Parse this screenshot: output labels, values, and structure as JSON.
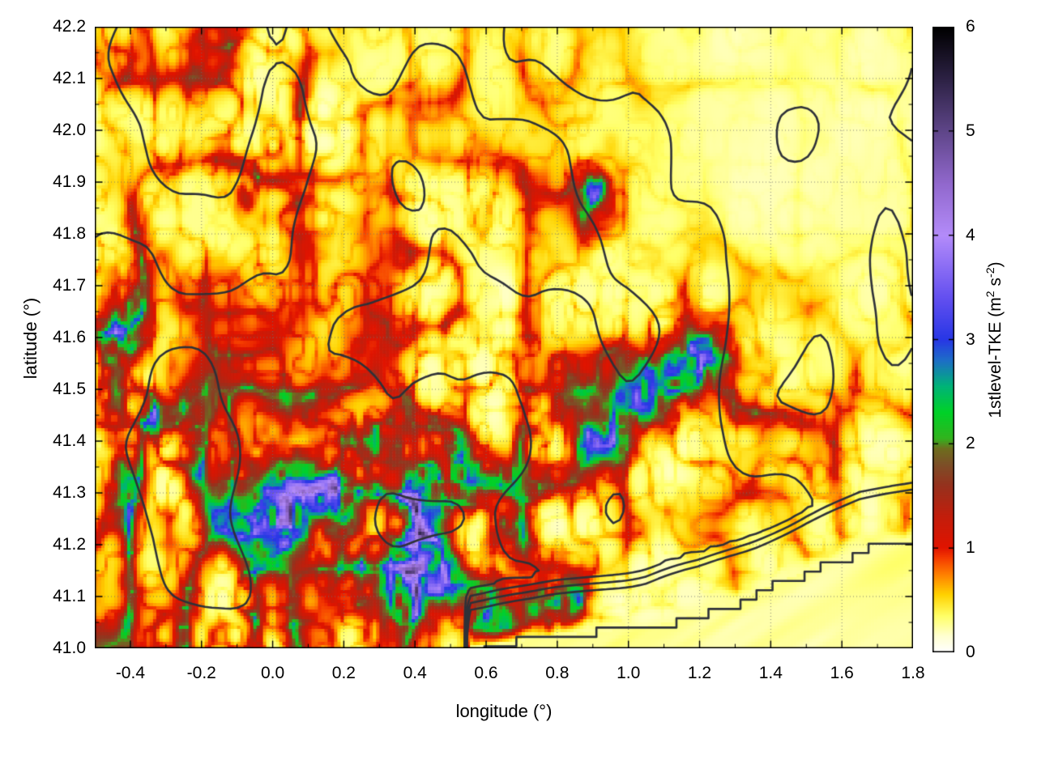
{
  "figure": {
    "background": "#ffffff"
  },
  "chart_data": {
    "type": "heatmap",
    "title": "",
    "xlabel": "longitude (°)",
    "ylabel": "latitude (°)",
    "xlim": [
      -0.5,
      1.8
    ],
    "ylim": [
      41.0,
      42.2
    ],
    "grid": {
      "style": "dotted",
      "color": "rgba(110,110,110,0.85)"
    },
    "xticks": {
      "values": [
        -0.4,
        -0.2,
        0.0,
        0.2,
        0.4,
        0.6,
        0.8,
        1.0,
        1.2,
        1.4,
        1.6,
        1.8
      ],
      "labels": [
        "-0.4",
        "-0.2",
        "0.0",
        "0.2",
        "0.4",
        "0.6",
        "0.8",
        "1.0",
        "1.2",
        "1.4",
        "1.6",
        "1.8"
      ],
      "minor": [
        -0.3,
        -0.1,
        0.1,
        0.3,
        0.5,
        0.7,
        0.9,
        1.1,
        1.3,
        1.5,
        1.7
      ]
    },
    "yticks": {
      "values": [
        41.0,
        41.1,
        41.2,
        41.3,
        41.4,
        41.5,
        41.6,
        41.7,
        41.8,
        41.9,
        42.0,
        42.1,
        42.2
      ],
      "labels": [
        "41.0",
        "41.1",
        "41.2",
        "41.3",
        "41.4",
        "41.5",
        "41.6",
        "41.7",
        "41.8",
        "41.9",
        "42.0",
        "42.1",
        "42.2"
      ],
      "minor": [
        41.05,
        41.15,
        41.25,
        41.35,
        41.45,
        41.55,
        41.65,
        41.75,
        41.85,
        41.95,
        42.05,
        42.15
      ]
    },
    "colorbar": {
      "range": [
        0,
        6
      ],
      "ticks": {
        "values": [
          0,
          1,
          2,
          3,
          4,
          5,
          6
        ],
        "labels": [
          "0",
          "1",
          "2",
          "3",
          "4",
          "5",
          "6"
        ]
      },
      "label_parts": {
        "prefix": "1stlevel-TKE (m",
        "sup1": "2",
        "mid": " s",
        "sup2": "-2",
        "suffix": ")"
      },
      "palette": [
        [
          0.0,
          "#ffffff"
        ],
        [
          0.15,
          "#ffffd2"
        ],
        [
          0.35,
          "#ffff64"
        ],
        [
          0.55,
          "#ffd200"
        ],
        [
          0.75,
          "#ff7d00"
        ],
        [
          0.9,
          "#f53c00"
        ],
        [
          1.0,
          "#e11400"
        ],
        [
          1.3,
          "#c31e0c"
        ],
        [
          1.6,
          "#96321e"
        ],
        [
          1.8,
          "#7d5028"
        ],
        [
          1.95,
          "#6e6e1e"
        ],
        [
          2.05,
          "#32b41e"
        ],
        [
          2.3,
          "#00d228"
        ],
        [
          2.55,
          "#00b478"
        ],
        [
          2.8,
          "#1e6ec8"
        ],
        [
          3.0,
          "#2837e6"
        ],
        [
          3.4,
          "#6450f0"
        ],
        [
          4.0,
          "#b48cfa"
        ],
        [
          4.5,
          "#9168cd"
        ],
        [
          5.0,
          "#5f4689"
        ],
        [
          5.5,
          "#2d2245"
        ],
        [
          6.0,
          "#000000"
        ]
      ]
    },
    "field": {
      "units": "m2 s-2",
      "background_level": [
        0.1,
        0.6
      ],
      "filament_level": [
        0.8,
        1.7
      ],
      "seed": 7,
      "intensity_regions": [
        [
          -0.42,
          41.55,
          0.16,
          0.42,
          0.95
        ],
        [
          -0.25,
          41.3,
          0.35,
          0.28,
          0.85
        ],
        [
          0.1,
          41.28,
          0.4,
          0.3,
          0.95
        ],
        [
          0.42,
          41.12,
          0.3,
          0.22,
          0.9
        ],
        [
          0.55,
          41.35,
          0.25,
          0.18,
          0.7
        ],
        [
          0.95,
          41.4,
          0.35,
          0.16,
          0.8
        ],
        [
          1.15,
          41.55,
          0.3,
          0.15,
          0.75
        ],
        [
          0.3,
          41.75,
          0.45,
          0.28,
          0.4
        ],
        [
          -0.05,
          42.08,
          0.14,
          0.22,
          0.8
        ],
        [
          -0.3,
          42.15,
          0.2,
          0.12,
          0.6
        ],
        [
          0.9,
          41.88,
          0.1,
          0.08,
          0.8
        ],
        [
          1.5,
          41.42,
          0.28,
          0.12,
          0.55
        ],
        [
          0.75,
          41.85,
          0.2,
          0.15,
          0.45
        ],
        [
          0.02,
          41.98,
          0.1,
          0.12,
          0.5
        ],
        [
          0.0,
          41.02,
          0.5,
          0.06,
          0.55
        ],
        [
          -0.38,
          41.02,
          0.25,
          0.06,
          0.55
        ],
        [
          1.4,
          41.92,
          0.5,
          0.4,
          -0.28
        ],
        [
          1.62,
          42.1,
          0.4,
          0.25,
          -0.2
        ]
      ],
      "high_tke_cores": [
        [
          -0.43,
          41.62,
          0.05,
          0.1,
          2.3
        ],
        [
          -0.445,
          41.5,
          0.04,
          0.07,
          1.9
        ],
        [
          -0.42,
          41.32,
          0.04,
          0.08,
          2.1
        ],
        [
          -0.33,
          41.44,
          0.03,
          0.04,
          1.6
        ],
        [
          0.05,
          41.3,
          0.14,
          0.1,
          2.5
        ],
        [
          0.17,
          41.28,
          0.07,
          0.05,
          3.0
        ],
        [
          0.02,
          41.22,
          0.08,
          0.06,
          2.0
        ],
        [
          0.3,
          41.4,
          0.1,
          0.05,
          2.6
        ],
        [
          0.41,
          41.29,
          0.045,
          0.07,
          3.6
        ],
        [
          0.4,
          41.17,
          0.07,
          0.07,
          3.0
        ],
        [
          0.33,
          41.09,
          0.11,
          0.07,
          2.3
        ],
        [
          0.47,
          41.12,
          0.06,
          0.05,
          2.4
        ],
        [
          0.56,
          41.33,
          0.09,
          0.05,
          2.0
        ],
        [
          0.67,
          41.22,
          0.05,
          0.045,
          2.9
        ],
        [
          0.62,
          41.05,
          0.06,
          0.05,
          2.3
        ],
        [
          0.77,
          41.07,
          0.06,
          0.055,
          3.1
        ],
        [
          0.85,
          41.1,
          0.04,
          0.035,
          3.3
        ],
        [
          0.93,
          41.4,
          0.07,
          0.04,
          2.1
        ],
        [
          1.03,
          41.47,
          0.1,
          0.05,
          2.3
        ],
        [
          1.13,
          41.53,
          0.1,
          0.05,
          2.4
        ],
        [
          1.23,
          41.58,
          0.08,
          0.045,
          2.2
        ],
        [
          0.9,
          41.89,
          0.035,
          0.028,
          2.7
        ],
        [
          -0.08,
          41.87,
          0.025,
          0.03,
          1.7
        ]
      ],
      "sea": {
        "coast": [
          [
            0.55,
            41.0
          ],
          [
            0.8,
            41.025
          ],
          [
            1.05,
            41.04
          ],
          [
            1.2,
            41.065
          ],
          [
            1.35,
            41.105
          ],
          [
            1.5,
            41.15
          ],
          [
            1.65,
            41.19
          ],
          [
            1.8,
            41.21
          ]
        ],
        "level_range": [
          0.15,
          0.38
        ]
      }
    },
    "contours": {
      "color": "#2e3138",
      "width": 2.6,
      "levels": [
        0.4,
        0.5,
        0.6,
        0.7,
        0.8
      ],
      "kind": "terrain-elevation"
    }
  }
}
